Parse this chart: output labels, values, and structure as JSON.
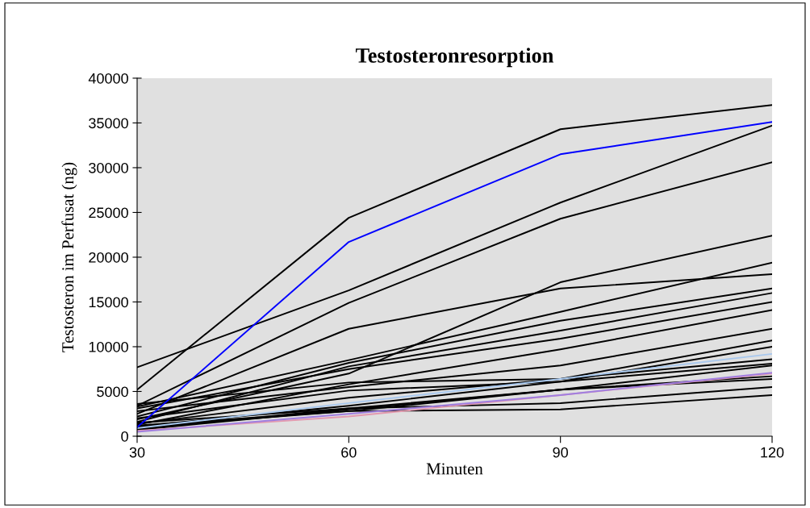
{
  "chart_data": {
    "type": "line",
    "title": "Testosteronresorption",
    "xlabel": "Minuten",
    "ylabel": "Testosteron im Perfusat (ng)",
    "x": [
      30,
      60,
      90,
      120
    ],
    "xlim": [
      30,
      120
    ],
    "xticks": [
      30,
      60,
      90,
      120
    ],
    "ylim": [
      0,
      40000
    ],
    "yticks": [
      0,
      5000,
      10000,
      15000,
      20000,
      25000,
      30000,
      35000,
      40000
    ],
    "series": [
      {
        "color": "#000000",
        "values": [
          5200,
          24400,
          34300,
          37000
        ]
      },
      {
        "color": "#000000",
        "values": [
          7700,
          16300,
          26100,
          34700
        ]
      },
      {
        "color": "#000000",
        "values": [
          3400,
          14900,
          24300,
          30600
        ]
      },
      {
        "color": "#000000",
        "values": [
          2500,
          12000,
          16500,
          18100
        ]
      },
      {
        "color": "#000000",
        "values": [
          1900,
          7000,
          17200,
          22400
        ]
      },
      {
        "color": "#000000",
        "values": [
          3300,
          8500,
          13900,
          19400
        ]
      },
      {
        "color": "#000000",
        "values": [
          2200,
          8200,
          12900,
          16500
        ]
      },
      {
        "color": "#000000",
        "values": [
          1600,
          7800,
          11800,
          16000
        ]
      },
      {
        "color": "#000000",
        "values": [
          3100,
          7500,
          10900,
          15000
        ]
      },
      {
        "color": "#000000",
        "values": [
          1300,
          5800,
          9700,
          14100
        ]
      },
      {
        "color": "#000000",
        "values": [
          2800,
          5500,
          7900,
          12000
        ]
      },
      {
        "color": "#000000",
        "values": [
          3600,
          6000,
          6400,
          10700
        ]
      },
      {
        "color": "#000000",
        "values": [
          2000,
          5100,
          6100,
          10000
        ]
      },
      {
        "color": "#000000",
        "values": [
          1400,
          4300,
          6400,
          8600
        ]
      },
      {
        "color": "#000000",
        "values": [
          1100,
          3400,
          6100,
          8100
        ]
      },
      {
        "color": "#000000",
        "values": [
          800,
          3100,
          5200,
          7900
        ]
      },
      {
        "color": "#000000",
        "values": [
          1000,
          2800,
          5200,
          6700
        ]
      },
      {
        "color": "#000000",
        "values": [
          700,
          3000,
          5200,
          6400
        ]
      },
      {
        "color": "#000000",
        "values": [
          1500,
          3100,
          3700,
          5500
        ]
      },
      {
        "color": "#000000",
        "values": [
          1200,
          2800,
          3000,
          4600
        ]
      },
      {
        "color": "#a8c8ee",
        "values": [
          900,
          3700,
          6400,
          9200
        ]
      },
      {
        "color": "#e39ab0",
        "values": [
          600,
          2200,
          4600,
          7000
        ]
      },
      {
        "color": "#a07ee0",
        "values": [
          500,
          2500,
          4600,
          7100
        ]
      },
      {
        "color": "#0000ff",
        "values": [
          1000,
          21700,
          31500,
          35100
        ]
      }
    ]
  }
}
